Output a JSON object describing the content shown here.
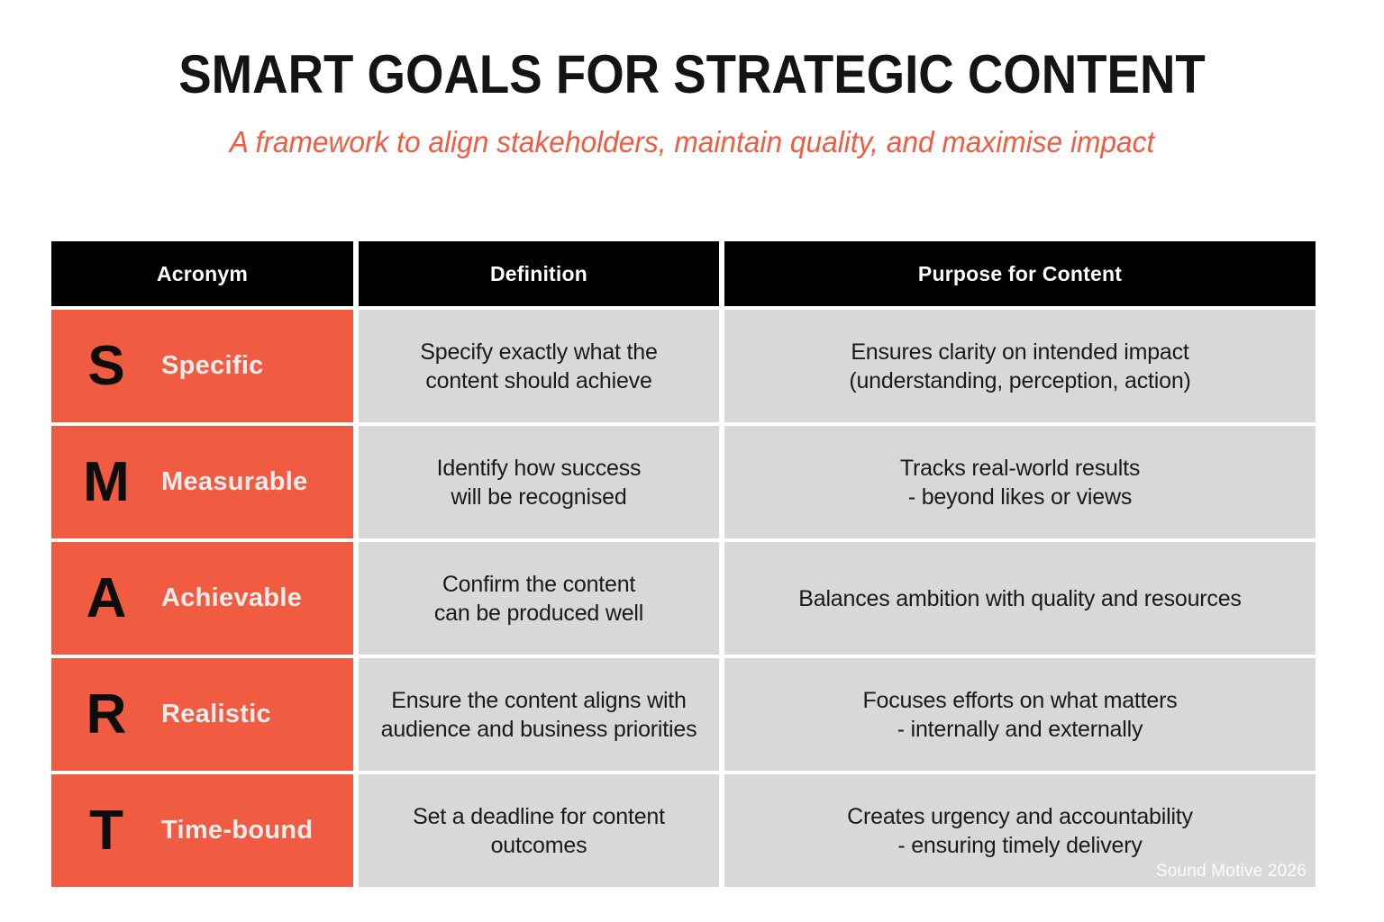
{
  "title": "SMART GOALS FOR STRATEGIC CONTENT",
  "subtitle": "A framework to align stakeholders, maintain quality, and maximise impact",
  "watermark": "Sound Motive 2026",
  "colors": {
    "accent_orange": "#F15B42",
    "cell_gray": "#D8D8D8",
    "header_bg": "#000000",
    "header_text": "#FFFFFF",
    "body_text": "#1A1A1A",
    "term_text": "#EFECEC"
  },
  "chart_data": {
    "type": "table",
    "title": "SMART GOALS FOR STRATEGIC CONTENT",
    "subtitle": "A framework to align stakeholders, maintain quality, and maximise impact",
    "columns": [
      "Acronym",
      "Definition",
      "Purpose for Content"
    ],
    "rows": [
      {
        "letter": "S",
        "term": "Specific",
        "definition": "Specify exactly what the\ncontent should achieve",
        "purpose": "Ensures clarity on intended impact\n(understanding, perception, action)"
      },
      {
        "letter": "M",
        "term": "Measurable",
        "definition": "Identify how success\nwill be recognised",
        "purpose": "Tracks real-world results\n- beyond likes or views"
      },
      {
        "letter": "A",
        "term": "Achievable",
        "definition": "Confirm the content\ncan be produced well",
        "purpose": "Balances ambition with quality and resources"
      },
      {
        "letter": "R",
        "term": "Realistic",
        "definition": "Ensure the content aligns with\naudience and business priorities",
        "purpose": "Focuses efforts on what matters\n- internally and externally"
      },
      {
        "letter": "T",
        "term": "Time-bound",
        "definition": "Set a deadline for content\noutcomes",
        "purpose": "Creates urgency and accountability\n- ensuring timely delivery"
      }
    ]
  }
}
